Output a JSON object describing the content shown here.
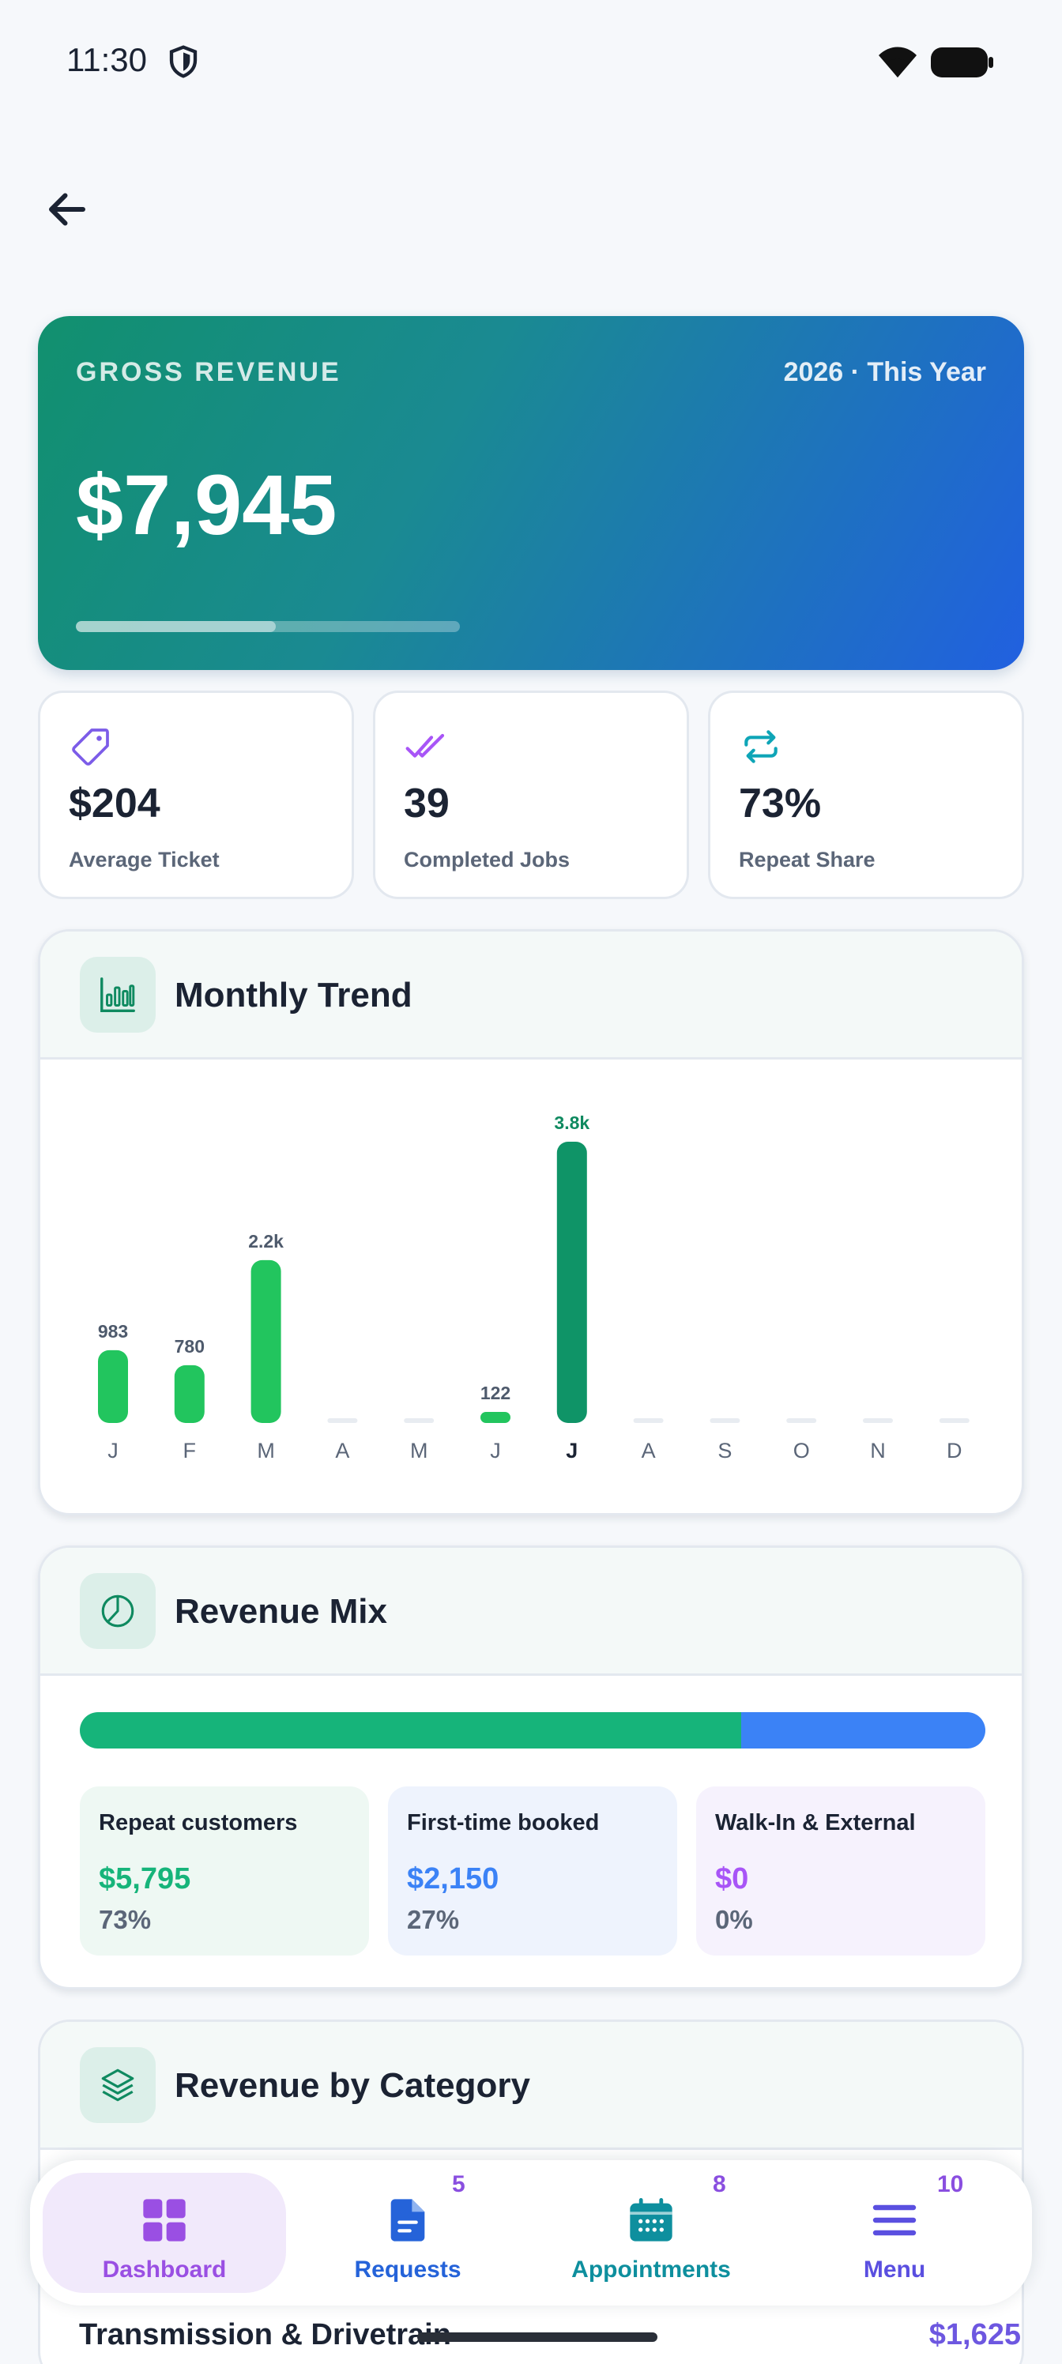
{
  "status_bar": {
    "time": "11:30"
  },
  "hero": {
    "label": "GROSS REVENUE",
    "period": "2026 · This Year",
    "amount": "$7,945",
    "progress": 0.52
  },
  "stats": [
    {
      "value": "$204",
      "label": "Average Ticket",
      "icon": "tag-icon"
    },
    {
      "value": "39",
      "label": "Completed Jobs",
      "icon": "double-check-icon"
    },
    {
      "value": "73%",
      "label": "Repeat Share",
      "icon": "repeat-icon"
    }
  ],
  "monthly_trend": {
    "title": "Monthly Trend",
    "icon": "bar-chart-icon"
  },
  "chart_data": {
    "type": "bar",
    "categories": [
      "J",
      "F",
      "M",
      "A",
      "M",
      "J",
      "J",
      "A",
      "S",
      "O",
      "N",
      "D"
    ],
    "values": [
      983,
      780,
      2200,
      0,
      0,
      122,
      3800,
      0,
      0,
      0,
      0,
      0
    ],
    "data_labels": [
      "983",
      "780",
      "2.2k",
      "",
      "",
      "122",
      "3.8k",
      "",
      "",
      "",
      "",
      ""
    ],
    "highlight_index": 6,
    "title": "Monthly Trend",
    "xlabel": "",
    "ylabel": "",
    "ylim": [
      0,
      3800
    ],
    "grid": false,
    "colors": {
      "bar": "#22c55e",
      "highlight": "#0f9467",
      "empty": "#e8ecf1"
    }
  },
  "revenue_mix": {
    "title": "Revenue Mix",
    "icon": "pie-chart-icon",
    "segments": [
      {
        "name": "Repeat customers",
        "amount": "$5,795",
        "pct": "73%",
        "fraction": 0.73,
        "color": "#16b47a",
        "bg": "#eef8f3"
      },
      {
        "name": "First-time booked",
        "amount": "$2,150",
        "pct": "27%",
        "fraction": 0.27,
        "color": "#3b82f6",
        "bg": "#eef3fd"
      },
      {
        "name": "Walk-In & External",
        "amount": "$0",
        "pct": "0%",
        "fraction": 0,
        "color": "#a855f7",
        "bg": "#f6f2fd"
      }
    ]
  },
  "revenue_by_category": {
    "title": "Revenue by Category",
    "icon": "layers-icon",
    "rows": [
      {
        "name": "Transmission & Drivetrain",
        "value": "$1,625"
      }
    ]
  },
  "nav": {
    "items": [
      {
        "label": "Dashboard",
        "badge": "",
        "active": true,
        "color": "#9a4fe3"
      },
      {
        "label": "Requests",
        "badge": "5",
        "active": false,
        "color": "#2563d9"
      },
      {
        "label": "Appointments",
        "badge": "8",
        "active": false,
        "color": "#0e8f9e"
      },
      {
        "label": "Menu",
        "badge": "10",
        "active": false,
        "color": "#5a4fe0"
      }
    ]
  }
}
